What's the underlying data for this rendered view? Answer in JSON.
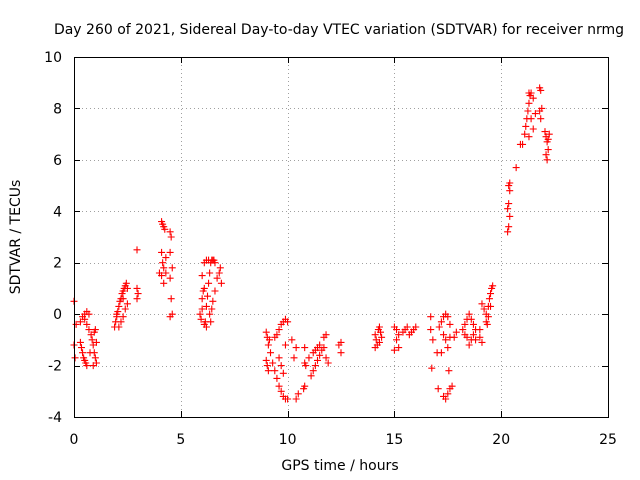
{
  "chart_data": {
    "type": "scatter",
    "title": "Day 260 of 2021, Sidereal Day-to-day VTEC variation (SDTVAR) for receiver nrmg",
    "xlabel": "GPS time / hours",
    "ylabel": "SDTVAR / TECUs",
    "xlim": [
      0,
      25
    ],
    "ylim": [
      -4,
      10
    ],
    "xticks": [
      0,
      5,
      10,
      15,
      20,
      25
    ],
    "yticks": [
      -4,
      -2,
      0,
      2,
      4,
      6,
      8,
      10
    ],
    "grid": true,
    "marker": "+",
    "color": "#ff0000",
    "series": [
      {
        "name": "SDTVAR",
        "points": [
          [
            0.0,
            0.5
          ],
          [
            0.0,
            -1.2
          ],
          [
            0.05,
            -1.7
          ],
          [
            0.1,
            -0.4
          ],
          [
            0.3,
            -1.1
          ],
          [
            0.35,
            -1.3
          ],
          [
            0.4,
            -1.5
          ],
          [
            0.45,
            -1.7
          ],
          [
            0.5,
            -1.8
          ],
          [
            0.55,
            -1.9
          ],
          [
            0.6,
            -2.0
          ],
          [
            0.3,
            -0.3
          ],
          [
            0.4,
            -0.1
          ],
          [
            0.5,
            0.0
          ],
          [
            0.6,
            0.1
          ],
          [
            0.7,
            0.0
          ],
          [
            0.75,
            -1.5
          ],
          [
            0.5,
            -0.2
          ],
          [
            0.6,
            -0.4
          ],
          [
            0.7,
            -0.6
          ],
          [
            0.8,
            -0.8
          ],
          [
            0.85,
            -1.0
          ],
          [
            0.9,
            -1.2
          ],
          [
            0.95,
            -1.5
          ],
          [
            1.0,
            -1.7
          ],
          [
            1.05,
            -1.9
          ],
          [
            0.9,
            -2.0
          ],
          [
            1.0,
            -0.6
          ],
          [
            1.05,
            -1.1
          ],
          [
            0.95,
            -0.7
          ],
          [
            1.9,
            -0.5
          ],
          [
            1.95,
            -0.3
          ],
          [
            2.0,
            -0.1
          ],
          [
            2.05,
            0.1
          ],
          [
            2.1,
            0.3
          ],
          [
            2.15,
            0.5
          ],
          [
            2.2,
            0.6
          ],
          [
            2.25,
            0.8
          ],
          [
            2.3,
            0.9
          ],
          [
            2.35,
            1.0
          ],
          [
            2.4,
            1.1
          ],
          [
            2.45,
            1.2
          ],
          [
            2.5,
            1.0
          ],
          [
            2.2,
            -0.3
          ],
          [
            2.3,
            -0.1
          ],
          [
            2.4,
            0.2
          ],
          [
            2.5,
            0.4
          ],
          [
            2.1,
            -0.5
          ],
          [
            2.0,
            0.0
          ],
          [
            2.3,
            0.6
          ],
          [
            2.95,
            2.5
          ],
          [
            2.95,
            1.0
          ],
          [
            3.0,
            0.8
          ],
          [
            2.95,
            0.6
          ],
          [
            4.1,
            3.6
          ],
          [
            4.15,
            3.5
          ],
          [
            4.2,
            3.4
          ],
          [
            4.25,
            3.3
          ],
          [
            4.1,
            2.4
          ],
          [
            4.15,
            2.0
          ],
          [
            4.2,
            1.8
          ],
          [
            4.1,
            1.5
          ],
          [
            4.2,
            1.2
          ],
          [
            4.3,
            1.6
          ],
          [
            4.3,
            2.2
          ],
          [
            4.0,
            1.6
          ],
          [
            4.5,
            3.2
          ],
          [
            4.55,
            3.0
          ],
          [
            4.5,
            2.4
          ],
          [
            4.6,
            1.8
          ],
          [
            4.5,
            1.4
          ],
          [
            4.55,
            0.6
          ],
          [
            4.5,
            -0.1
          ],
          [
            4.6,
            0.0
          ],
          [
            5.9,
            0.0
          ],
          [
            5.95,
            -0.2
          ],
          [
            6.0,
            0.2
          ],
          [
            6.0,
            0.6
          ],
          [
            6.05,
            0.9
          ],
          [
            6.1,
            1.0
          ],
          [
            6.15,
            -0.3
          ],
          [
            6.2,
            0.3
          ],
          [
            6.25,
            0.7
          ],
          [
            6.3,
            1.2
          ],
          [
            6.35,
            1.6
          ],
          [
            6.4,
            2.0
          ],
          [
            6.45,
            2.1
          ],
          [
            6.5,
            2.1
          ],
          [
            6.55,
            2.1
          ],
          [
            6.6,
            2.0
          ],
          [
            6.2,
            2.1
          ],
          [
            6.3,
            2.1
          ],
          [
            6.1,
            2.0
          ],
          [
            6.35,
            0.0
          ],
          [
            6.45,
            0.2
          ],
          [
            6.5,
            0.5
          ],
          [
            6.6,
            0.9
          ],
          [
            6.7,
            1.4
          ],
          [
            6.8,
            1.6
          ],
          [
            6.85,
            1.8
          ],
          [
            6.9,
            1.2
          ],
          [
            6.0,
            1.5
          ],
          [
            6.1,
            -0.4
          ],
          [
            6.2,
            -0.5
          ],
          [
            6.4,
            -0.3
          ],
          [
            9.0,
            -0.7
          ],
          [
            9.05,
            -0.9
          ],
          [
            9.1,
            -1.2
          ],
          [
            9.15,
            -1.0
          ],
          [
            9.0,
            -1.8
          ],
          [
            9.05,
            -2.0
          ],
          [
            9.1,
            -2.2
          ],
          [
            9.2,
            -1.5
          ],
          [
            9.3,
            -1.9
          ],
          [
            9.4,
            -2.2
          ],
          [
            9.5,
            -2.5
          ],
          [
            9.6,
            -2.8
          ],
          [
            9.7,
            -3.0
          ],
          [
            9.8,
            -3.2
          ],
          [
            9.9,
            -3.3
          ],
          [
            10.0,
            -3.3
          ],
          [
            9.4,
            -0.9
          ],
          [
            9.5,
            -0.8
          ],
          [
            9.6,
            -0.6
          ],
          [
            9.7,
            -0.4
          ],
          [
            9.8,
            -0.3
          ],
          [
            9.9,
            -0.2
          ],
          [
            10.0,
            -0.3
          ],
          [
            9.6,
            -1.7
          ],
          [
            9.7,
            -2.0
          ],
          [
            9.8,
            -2.3
          ],
          [
            9.9,
            -1.2
          ],
          [
            10.4,
            -3.3
          ],
          [
            10.5,
            -3.1
          ],
          [
            10.3,
            -1.7
          ],
          [
            10.4,
            -1.3
          ],
          [
            10.2,
            -1.0
          ],
          [
            10.75,
            -2.9
          ],
          [
            10.8,
            -2.8
          ],
          [
            10.8,
            -1.9
          ],
          [
            10.85,
            -2.0
          ],
          [
            10.8,
            -1.3
          ],
          [
            11.0,
            -1.7
          ],
          [
            11.1,
            -2.4
          ],
          [
            11.2,
            -2.2
          ],
          [
            11.3,
            -2.0
          ],
          [
            11.4,
            -1.8
          ],
          [
            11.5,
            -1.6
          ],
          [
            11.6,
            -1.4
          ],
          [
            11.7,
            -1.3
          ],
          [
            11.2,
            -1.5
          ],
          [
            11.3,
            -1.4
          ],
          [
            11.4,
            -1.3
          ],
          [
            11.5,
            -1.2
          ],
          [
            11.7,
            -0.9
          ],
          [
            11.8,
            -0.8
          ],
          [
            11.8,
            -1.7
          ],
          [
            11.9,
            -1.9
          ],
          [
            12.4,
            -1.2
          ],
          [
            12.5,
            -1.1
          ],
          [
            12.5,
            -1.5
          ],
          [
            14.1,
            -0.8
          ],
          [
            14.15,
            -1.0
          ],
          [
            14.2,
            -1.2
          ],
          [
            14.25,
            -0.6
          ],
          [
            14.3,
            -0.5
          ],
          [
            14.35,
            -0.7
          ],
          [
            14.4,
            -0.9
          ],
          [
            14.1,
            -1.3
          ],
          [
            14.3,
            -1.1
          ],
          [
            15.0,
            -0.5
          ],
          [
            15.1,
            -0.6
          ],
          [
            15.2,
            -0.8
          ],
          [
            15.1,
            -1.0
          ],
          [
            15.2,
            -1.3
          ],
          [
            15.0,
            -1.4
          ],
          [
            15.4,
            -0.7
          ],
          [
            15.5,
            -0.6
          ],
          [
            15.6,
            -0.5
          ],
          [
            15.7,
            -0.8
          ],
          [
            15.8,
            -0.7
          ],
          [
            15.9,
            -0.6
          ],
          [
            16.0,
            -0.5
          ],
          [
            16.7,
            -0.1
          ],
          [
            16.7,
            -0.6
          ],
          [
            16.8,
            -1.0
          ],
          [
            16.75,
            -2.1
          ],
          [
            17.0,
            -1.5
          ],
          [
            17.05,
            -2.9
          ],
          [
            17.1,
            -0.5
          ],
          [
            17.2,
            -0.3
          ],
          [
            17.3,
            -0.1
          ],
          [
            17.4,
            0.0
          ],
          [
            17.5,
            -0.1
          ],
          [
            17.6,
            -0.4
          ],
          [
            17.3,
            -3.2
          ],
          [
            17.4,
            -3.3
          ],
          [
            17.5,
            -3.1
          ],
          [
            17.6,
            -2.9
          ],
          [
            17.7,
            -2.8
          ],
          [
            17.55,
            -2.2
          ],
          [
            17.3,
            -0.8
          ],
          [
            17.4,
            -1.0
          ],
          [
            17.5,
            -1.3
          ],
          [
            17.6,
            -0.9
          ],
          [
            17.2,
            -1.5
          ],
          [
            17.8,
            -0.9
          ],
          [
            17.9,
            -0.7
          ],
          [
            18.2,
            -0.6
          ],
          [
            18.3,
            -0.4
          ],
          [
            18.4,
            -0.2
          ],
          [
            18.5,
            0.0
          ],
          [
            18.6,
            -0.2
          ],
          [
            18.7,
            -0.4
          ],
          [
            18.8,
            -0.6
          ],
          [
            18.4,
            -0.9
          ],
          [
            18.5,
            -1.2
          ],
          [
            18.6,
            -1.0
          ],
          [
            18.3,
            -0.8
          ],
          [
            18.7,
            -0.8
          ],
          [
            18.8,
            -1.0
          ],
          [
            19.0,
            -0.9
          ],
          [
            19.1,
            -1.1
          ],
          [
            19.0,
            -0.6
          ],
          [
            19.1,
            0.4
          ],
          [
            19.2,
            0.2
          ],
          [
            19.3,
            0.0
          ],
          [
            19.35,
            -0.4
          ],
          [
            19.4,
            0.3
          ],
          [
            19.45,
            0.6
          ],
          [
            19.5,
            0.8
          ],
          [
            19.55,
            1.0
          ],
          [
            19.6,
            1.1
          ],
          [
            19.5,
            0.3
          ],
          [
            19.4,
            -0.1
          ],
          [
            19.3,
            -0.3
          ],
          [
            20.3,
            3.2
          ],
          [
            20.35,
            3.4
          ],
          [
            20.4,
            3.8
          ],
          [
            20.3,
            4.1
          ],
          [
            20.35,
            4.3
          ],
          [
            20.4,
            4.8
          ],
          [
            20.35,
            5.0
          ],
          [
            20.4,
            5.1
          ],
          [
            20.7,
            5.7
          ],
          [
            20.9,
            6.6
          ],
          [
            21.0,
            6.6
          ],
          [
            21.1,
            7.0
          ],
          [
            21.15,
            7.3
          ],
          [
            21.2,
            7.6
          ],
          [
            21.25,
            7.9
          ],
          [
            21.3,
            8.2
          ],
          [
            21.35,
            8.5
          ],
          [
            21.4,
            8.6
          ],
          [
            21.3,
            8.6
          ],
          [
            21.5,
            8.4
          ],
          [
            21.4,
            7.6
          ],
          [
            21.5,
            7.2
          ],
          [
            21.3,
            6.9
          ],
          [
            21.6,
            7.8
          ],
          [
            21.8,
            8.8
          ],
          [
            21.85,
            8.7
          ],
          [
            21.8,
            7.9
          ],
          [
            21.85,
            7.6
          ],
          [
            21.9,
            8.0
          ],
          [
            22.05,
            7.1
          ],
          [
            22.1,
            6.9
          ],
          [
            22.15,
            6.7
          ],
          [
            22.2,
            6.4
          ],
          [
            22.1,
            6.2
          ],
          [
            22.15,
            6.0
          ],
          [
            22.2,
            6.8
          ],
          [
            22.25,
            7.0
          ]
        ]
      }
    ]
  }
}
